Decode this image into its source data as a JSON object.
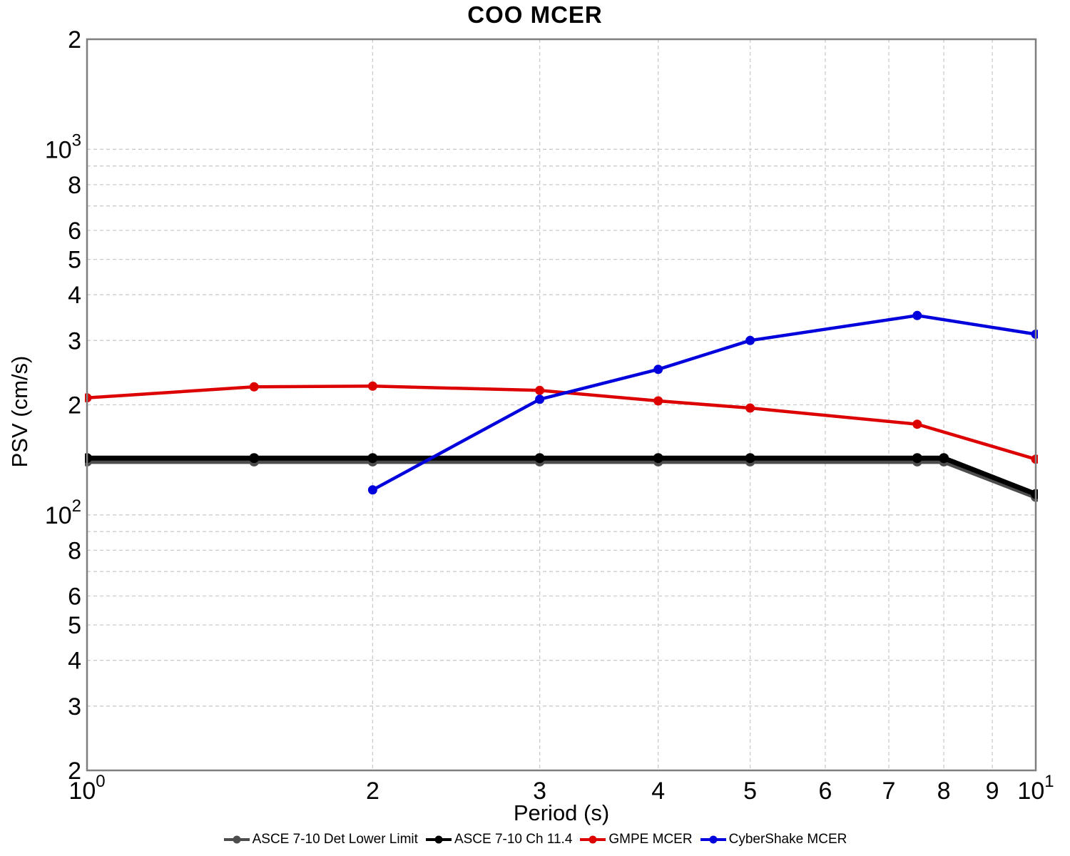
{
  "chart_data": {
    "type": "line",
    "title": "COO MCER",
    "xlabel": "Period (s)",
    "ylabel": "PSV (cm/s)",
    "x_scale": "log",
    "y_scale": "log",
    "xlim": [
      1,
      10
    ],
    "ylim": [
      20,
      2000
    ],
    "grid": "dashed",
    "legend_position": "bottom-center",
    "x_ticks": [
      {
        "value": 1,
        "label": "10^0"
      },
      {
        "value": 2,
        "label": "2"
      },
      {
        "value": 3,
        "label": "3"
      },
      {
        "value": 4,
        "label": "4"
      },
      {
        "value": 5,
        "label": "5"
      },
      {
        "value": 6,
        "label": "6"
      },
      {
        "value": 7,
        "label": "7"
      },
      {
        "value": 8,
        "label": "8"
      },
      {
        "value": 9,
        "label": "9"
      },
      {
        "value": 10,
        "label": "10^1"
      }
    ],
    "y_ticks": [
      {
        "value": 2000,
        "label": "2"
      },
      {
        "value": 1000,
        "label": "10^3"
      },
      {
        "value": 900,
        "label": ""
      },
      {
        "value": 800,
        "label": "8"
      },
      {
        "value": 700,
        "label": ""
      },
      {
        "value": 600,
        "label": "6"
      },
      {
        "value": 500,
        "label": "5"
      },
      {
        "value": 400,
        "label": "4"
      },
      {
        "value": 300,
        "label": "3"
      },
      {
        "value": 200,
        "label": "2"
      },
      {
        "value": 100,
        "label": "10^2"
      },
      {
        "value": 90,
        "label": ""
      },
      {
        "value": 80,
        "label": "8"
      },
      {
        "value": 70,
        "label": ""
      },
      {
        "value": 60,
        "label": "6"
      },
      {
        "value": 50,
        "label": "5"
      },
      {
        "value": 40,
        "label": "4"
      },
      {
        "value": 30,
        "label": "3"
      },
      {
        "value": 20,
        "label": "2"
      }
    ],
    "series": [
      {
        "name": "ASCE 7-10 Det Lower Limit",
        "color": "#4d4d4d",
        "line_width": 7,
        "marker": "circle",
        "marker_size": 7,
        "points": [
          [
            1,
            140
          ],
          [
            1.5,
            140
          ],
          [
            2,
            140
          ],
          [
            3,
            140
          ],
          [
            4,
            140
          ],
          [
            5,
            140
          ],
          [
            7.5,
            140
          ],
          [
            8,
            140
          ],
          [
            10,
            112
          ]
        ]
      },
      {
        "name": "ASCE 7-10 Ch 11.4",
        "color": "#000000",
        "line_width": 7,
        "marker": "circle",
        "marker_size": 7,
        "points": [
          [
            1,
            143
          ],
          [
            1.5,
            143
          ],
          [
            2,
            143
          ],
          [
            3,
            143
          ],
          [
            4,
            143
          ],
          [
            5,
            143
          ],
          [
            7.5,
            143
          ],
          [
            8,
            143
          ],
          [
            10,
            114
          ]
        ]
      },
      {
        "name": "GMPE MCER",
        "color": "#dd0000",
        "line_width": 4.5,
        "marker": "circle",
        "marker_size": 6.5,
        "points": [
          [
            1,
            209
          ],
          [
            1.5,
            224
          ],
          [
            2,
            225
          ],
          [
            3,
            219
          ],
          [
            4,
            205
          ],
          [
            5,
            196
          ],
          [
            7.5,
            177
          ],
          [
            10,
            142
          ]
        ]
      },
      {
        "name": "CyberShake MCER",
        "color": "#0000dd",
        "line_width": 4.5,
        "marker": "circle",
        "marker_size": 6.5,
        "points": [
          [
            2,
            117
          ],
          [
            3,
            207
          ],
          [
            4,
            250
          ],
          [
            5,
            300
          ],
          [
            7.5,
            351
          ],
          [
            10,
            312
          ]
        ]
      }
    ],
    "styles": {
      "grid_color": "#cbcbcb",
      "axis_color": "#7f7f7f",
      "background": "#ffffff",
      "text_color": "#000000"
    }
  }
}
